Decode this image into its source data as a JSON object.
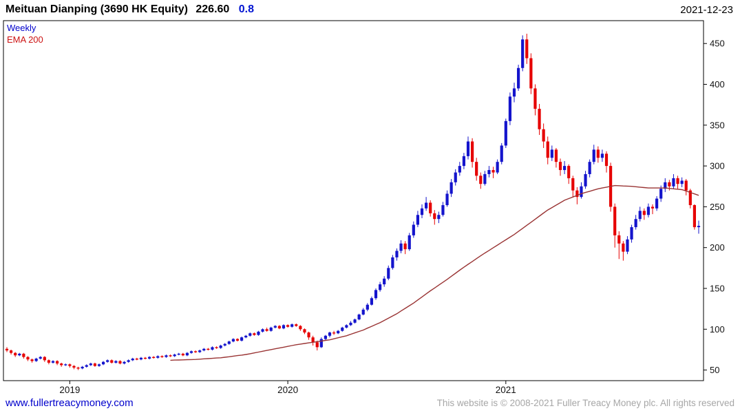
{
  "header": {
    "title": "Meituan Dianping (3690 HK Equity)",
    "price": "226.60",
    "change": "0.8",
    "date": "2021-12-23"
  },
  "legend": {
    "series": "Weekly",
    "ema": "EMA 200"
  },
  "footer": {
    "link": "www.fullertreacymoney.com",
    "copyright": "This website is © 2008-2021 Fuller Treacy Money plc. All rights reserved"
  },
  "chart_data": {
    "type": "candlestick",
    "title": "Meituan Dianping (3690 HK Equity)",
    "timeframe": "Weekly",
    "overlay": "EMA 200",
    "last_price": 226.6,
    "change": 0.8,
    "date": "2021-12-23",
    "y_ticks": [
      450,
      400,
      350,
      300,
      250,
      200,
      150,
      100,
      50
    ],
    "y_domain": [
      37,
      478
    ],
    "x_year_labels": [
      "2019",
      "2020",
      "2021"
    ],
    "x_year_indices": [
      15,
      67,
      119
    ],
    "grid": false,
    "legend_position": "top-left",
    "colors": {
      "up": "#1414cc",
      "down": "#e60000",
      "ema": "#993333",
      "axis": "#000000"
    },
    "candles": [
      [
        76,
        78,
        72,
        74
      ],
      [
        74,
        75,
        69,
        71
      ],
      [
        71,
        72,
        66,
        68
      ],
      [
        68,
        71,
        67,
        70
      ],
      [
        70,
        71,
        64,
        66
      ],
      [
        66,
        67,
        61,
        63
      ],
      [
        63,
        64,
        59,
        61
      ],
      [
        61,
        65,
        60,
        64
      ],
      [
        64,
        67,
        63,
        66
      ],
      [
        66,
        67,
        60,
        62
      ],
      [
        62,
        63,
        57,
        59
      ],
      [
        59,
        62,
        58,
        61
      ],
      [
        61,
        62,
        56,
        58
      ],
      [
        58,
        59,
        54,
        56
      ],
      [
        56,
        58,
        55,
        57
      ],
      [
        57,
        58,
        53,
        55
      ],
      [
        55,
        56,
        51,
        53
      ],
      [
        53,
        54,
        50,
        52
      ],
      [
        52,
        55,
        51,
        54
      ],
      [
        54,
        57,
        53,
        56
      ],
      [
        56,
        59,
        55,
        58
      ],
      [
        58,
        59,
        54,
        55
      ],
      [
        55,
        58,
        54,
        57
      ],
      [
        57,
        61,
        56,
        60
      ],
      [
        60,
        63,
        59,
        62
      ],
      [
        62,
        63,
        58,
        59
      ],
      [
        59,
        62,
        58,
        61
      ],
      [
        61,
        62,
        57,
        58
      ],
      [
        58,
        61,
        57,
        60
      ],
      [
        60,
        63,
        59,
        62
      ],
      [
        62,
        65,
        61,
        64
      ],
      [
        64,
        65,
        62,
        63
      ],
      [
        63,
        66,
        62,
        65
      ],
      [
        65,
        66,
        63,
        64
      ],
      [
        64,
        67,
        63,
        66
      ],
      [
        66,
        67,
        64,
        65
      ],
      [
        65,
        68,
        64,
        67
      ],
      [
        67,
        68,
        65,
        66
      ],
      [
        66,
        69,
        65,
        68
      ],
      [
        68,
        69,
        66,
        67
      ],
      [
        67,
        70,
        66,
        69
      ],
      [
        69,
        71,
        68,
        70
      ],
      [
        70,
        71,
        67,
        68
      ],
      [
        68,
        72,
        67,
        71
      ],
      [
        71,
        74,
        70,
        73
      ],
      [
        73,
        74,
        71,
        72
      ],
      [
        72,
        75,
        71,
        74
      ],
      [
        74,
        77,
        73,
        76
      ],
      [
        76,
        77,
        74,
        75
      ],
      [
        75,
        79,
        74,
        78
      ],
      [
        78,
        79,
        76,
        77
      ],
      [
        77,
        81,
        76,
        80
      ],
      [
        80,
        83,
        79,
        82
      ],
      [
        82,
        86,
        81,
        85
      ],
      [
        85,
        89,
        84,
        88
      ],
      [
        88,
        89,
        85,
        86
      ],
      [
        86,
        91,
        85,
        90
      ],
      [
        90,
        93,
        89,
        92
      ],
      [
        92,
        96,
        91,
        95
      ],
      [
        95,
        96,
        92,
        93
      ],
      [
        93,
        98,
        92,
        97
      ],
      [
        97,
        101,
        96,
        100
      ],
      [
        100,
        102,
        97,
        98
      ],
      [
        98,
        103,
        97,
        102
      ],
      [
        102,
        105,
        101,
        104
      ],
      [
        104,
        105,
        100,
        101
      ],
      [
        101,
        106,
        100,
        105
      ],
      [
        105,
        106,
        102,
        103
      ],
      [
        103,
        107,
        102,
        106
      ],
      [
        106,
        107,
        103,
        104
      ],
      [
        104,
        105,
        98,
        100
      ],
      [
        100,
        101,
        94,
        96
      ],
      [
        96,
        97,
        87,
        90
      ],
      [
        90,
        92,
        80,
        84
      ],
      [
        84,
        86,
        74,
        78
      ],
      [
        78,
        90,
        77,
        88
      ],
      [
        88,
        93,
        86,
        92
      ],
      [
        92,
        97,
        90,
        96
      ],
      [
        96,
        98,
        93,
        95
      ],
      [
        95,
        99,
        94,
        98
      ],
      [
        98,
        103,
        97,
        102
      ],
      [
        102,
        106,
        101,
        105
      ],
      [
        105,
        110,
        104,
        108
      ],
      [
        108,
        113,
        107,
        112
      ],
      [
        112,
        119,
        111,
        118
      ],
      [
        118,
        126,
        117,
        124
      ],
      [
        124,
        132,
        122,
        130
      ],
      [
        130,
        140,
        129,
        138
      ],
      [
        138,
        150,
        136,
        148
      ],
      [
        148,
        158,
        146,
        155
      ],
      [
        155,
        165,
        152,
        162
      ],
      [
        162,
        178,
        160,
        175
      ],
      [
        175,
        191,
        173,
        188
      ],
      [
        188,
        199,
        184,
        196
      ],
      [
        196,
        209,
        193,
        205
      ],
      [
        205,
        208,
        192,
        198
      ],
      [
        198,
        218,
        196,
        215
      ],
      [
        215,
        232,
        212,
        228
      ],
      [
        228,
        245,
        225,
        240
      ],
      [
        240,
        253,
        236,
        248
      ],
      [
        248,
        262,
        245,
        255
      ],
      [
        255,
        258,
        238,
        242
      ],
      [
        242,
        246,
        228,
        235
      ],
      [
        235,
        244,
        230,
        240
      ],
      [
        240,
        256,
        238,
        252
      ],
      [
        252,
        270,
        250,
        266
      ],
      [
        266,
        284,
        262,
        280
      ],
      [
        280,
        296,
        276,
        292
      ],
      [
        292,
        305,
        288,
        300
      ],
      [
        300,
        316,
        296,
        312
      ],
      [
        312,
        336,
        308,
        330
      ],
      [
        330,
        334,
        298,
        305
      ],
      [
        305,
        310,
        282,
        288
      ],
      [
        288,
        292,
        272,
        278
      ],
      [
        278,
        294,
        276,
        290
      ],
      [
        290,
        300,
        286,
        295
      ],
      [
        295,
        299,
        285,
        292
      ],
      [
        292,
        308,
        290,
        305
      ],
      [
        305,
        328,
        302,
        325
      ],
      [
        325,
        358,
        322,
        355
      ],
      [
        355,
        390,
        350,
        385
      ],
      [
        385,
        402,
        378,
        395
      ],
      [
        395,
        424,
        392,
        420
      ],
      [
        420,
        460,
        416,
        455
      ],
      [
        455,
        462,
        425,
        432
      ],
      [
        432,
        438,
        388,
        395
      ],
      [
        395,
        400,
        362,
        370
      ],
      [
        370,
        376,
        338,
        345
      ],
      [
        345,
        352,
        322,
        330
      ],
      [
        330,
        336,
        302,
        310
      ],
      [
        310,
        325,
        306,
        320
      ],
      [
        320,
        322,
        298,
        305
      ],
      [
        305,
        309,
        288,
        295
      ],
      [
        295,
        306,
        290,
        300
      ],
      [
        300,
        302,
        278,
        285
      ],
      [
        285,
        288,
        262,
        270
      ],
      [
        270,
        274,
        253,
        262
      ],
      [
        262,
        280,
        260,
        275
      ],
      [
        275,
        294,
        272,
        290
      ],
      [
        290,
        308,
        286,
        305
      ],
      [
        305,
        326,
        302,
        320
      ],
      [
        320,
        324,
        304,
        310
      ],
      [
        310,
        320,
        305,
        315
      ],
      [
        315,
        318,
        292,
        300
      ],
      [
        300,
        304,
        244,
        250
      ],
      [
        250,
        254,
        200,
        215
      ],
      [
        215,
        220,
        186,
        205
      ],
      [
        205,
        208,
        184,
        195
      ],
      [
        195,
        214,
        192,
        210
      ],
      [
        210,
        228,
        206,
        225
      ],
      [
        225,
        240,
        222,
        235
      ],
      [
        235,
        250,
        232,
        245
      ],
      [
        245,
        248,
        234,
        240
      ],
      [
        240,
        254,
        237,
        250
      ],
      [
        250,
        253,
        241,
        248
      ],
      [
        248,
        263,
        245,
        260
      ],
      [
        260,
        276,
        256,
        272
      ],
      [
        272,
        285,
        268,
        280
      ],
      [
        280,
        283,
        270,
        275
      ],
      [
        275,
        290,
        272,
        285
      ],
      [
        285,
        288,
        272,
        278
      ],
      [
        278,
        286,
        274,
        282
      ],
      [
        282,
        284,
        264,
        270
      ],
      [
        270,
        272,
        248,
        252
      ],
      [
        252,
        253,
        222,
        225
      ],
      [
        225,
        233,
        217,
        226.6
      ]
    ],
    "ema200": {
      "start_index": 39,
      "values": [
        62,
        62.2,
        62.3,
        62.5,
        62.7,
        62.8,
        63,
        63.3,
        63.7,
        64,
        64.3,
        64.7,
        65,
        65.7,
        66.3,
        67,
        67.7,
        68.3,
        69,
        70,
        71,
        72,
        73,
        74,
        75,
        76,
        77,
        78,
        79,
        80,
        81,
        81.8,
        82.5,
        83.3,
        84,
        84.8,
        85.5,
        86.3,
        87,
        88.3,
        89.5,
        90.8,
        92,
        93.8,
        95.5,
        97.3,
        99,
        101.3,
        103.5,
        105.8,
        108,
        110.8,
        113.5,
        116.3,
        119,
        122.3,
        125.5,
        128.8,
        132,
        135.8,
        139.5,
        143.3,
        147,
        150.5,
        154,
        157.5,
        161,
        164.8,
        168.5,
        172.3,
        176,
        179.5,
        183,
        186.5,
        190,
        193.3,
        196.5,
        199.8,
        203,
        206.3,
        209.5,
        212.8,
        216,
        219.8,
        223.5,
        227.3,
        231,
        234.8,
        238.5,
        242.3,
        246,
        249,
        252,
        255,
        258,
        260,
        262,
        264,
        266,
        267.5,
        269,
        270.5,
        272,
        273,
        274,
        275,
        276,
        275.8,
        275.5,
        275.3,
        275,
        274.5,
        274,
        273.5,
        273,
        273,
        273,
        273,
        273,
        272.5,
        272,
        271.5,
        271,
        269.3,
        267.5,
        265.8,
        264
      ]
    }
  }
}
